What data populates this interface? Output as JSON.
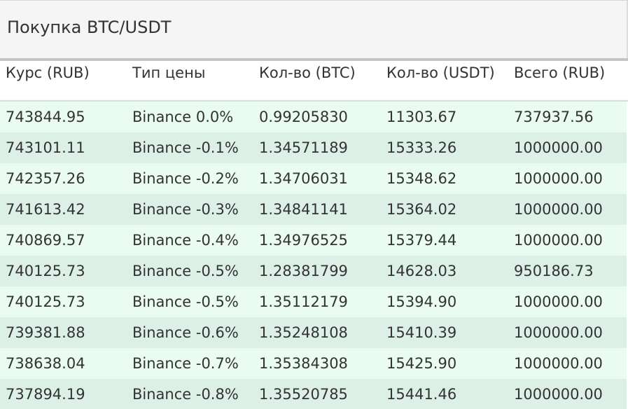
{
  "header": {
    "title": "Покупка BTC/USDT"
  },
  "table": {
    "columns": [
      "Курс (RUB)",
      "Тип цены",
      "Кол-во (BTC)",
      "Кол-во (USDT)",
      "Всего (RUB)"
    ],
    "rows": [
      [
        "743844.95",
        "Binance 0.0%",
        "0.99205830",
        "11303.67",
        "737937.56"
      ],
      [
        "743101.11",
        "Binance -0.1%",
        "1.34571189",
        "15333.26",
        "1000000.00"
      ],
      [
        "742357.26",
        "Binance -0.2%",
        "1.34706031",
        "15348.62",
        "1000000.00"
      ],
      [
        "741613.42",
        "Binance -0.3%",
        "1.34841141",
        "15364.02",
        "1000000.00"
      ],
      [
        "740869.57",
        "Binance -0.4%",
        "1.34976525",
        "15379.44",
        "1000000.00"
      ],
      [
        "740125.73",
        "Binance -0.5%",
        "1.28381799",
        "14628.03",
        "950186.73"
      ],
      [
        "740125.73",
        "Binance -0.5%",
        "1.35112179",
        "15394.90",
        "1000000.00"
      ],
      [
        "739381.88",
        "Binance -0.6%",
        "1.35248108",
        "15410.39",
        "1000000.00"
      ],
      [
        "738638.04",
        "Binance -0.7%",
        "1.35384308",
        "15425.90",
        "1000000.00"
      ],
      [
        "737894.19",
        "Binance -0.8%",
        "1.35520785",
        "15441.46",
        "1000000.00"
      ]
    ]
  }
}
